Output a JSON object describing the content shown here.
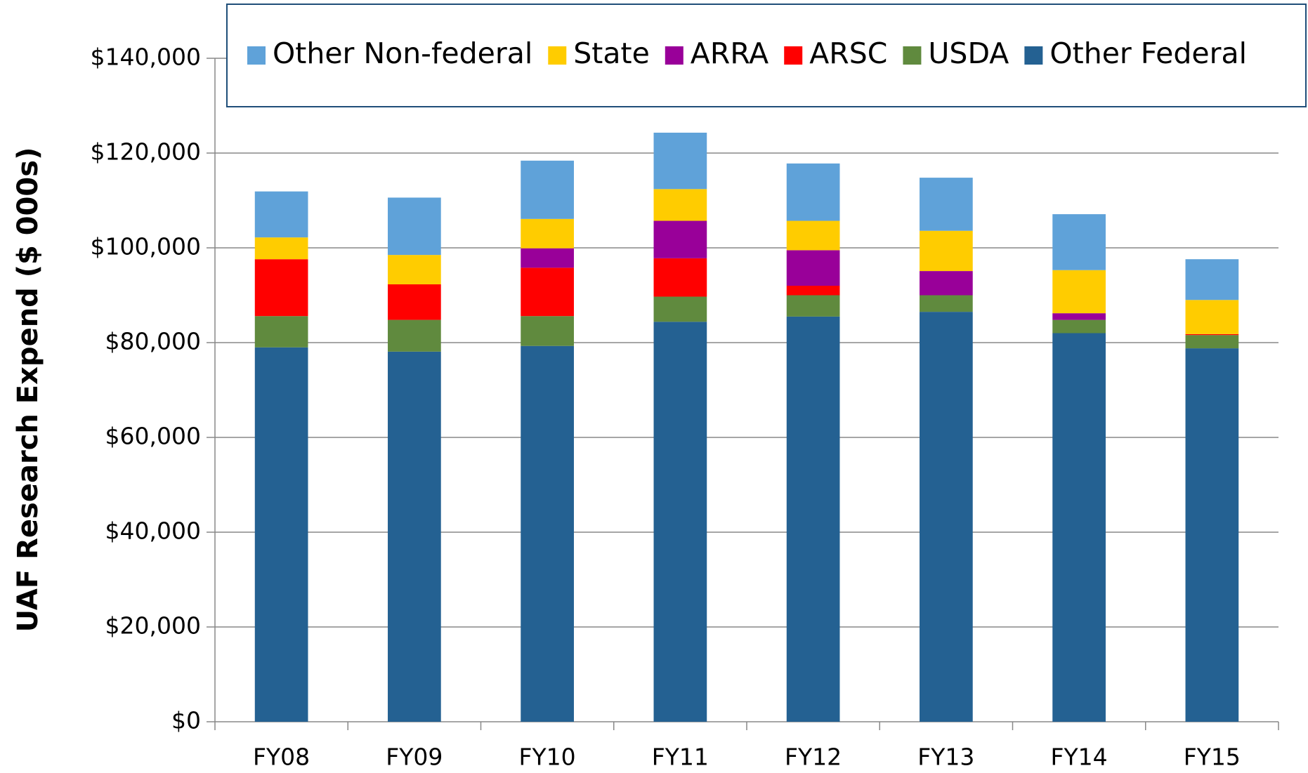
{
  "chart_data": {
    "type": "stacked_bar",
    "ylabel": "UAF Research Expend ($ 000s)",
    "categories": [
      "FY08",
      "FY09",
      "FY10",
      "FY11",
      "FY12",
      "FY13",
      "FY14",
      "FY15"
    ],
    "series": [
      {
        "name": "Other Non-federal",
        "color": "#5fa2d9",
        "values": [
          9700,
          12100,
          12300,
          11900,
          12100,
          11200,
          11800,
          8600
        ]
      },
      {
        "name": "State",
        "color": "#ffcc00",
        "values": [
          4600,
          6200,
          6200,
          6700,
          6200,
          8500,
          9100,
          7200
        ]
      },
      {
        "name": "ARRA",
        "color": "#990099",
        "values": [
          0,
          0,
          4100,
          7900,
          7500,
          5100,
          1400,
          0
        ]
      },
      {
        "name": "ARSC",
        "color": "#ff0000",
        "values": [
          12000,
          7500,
          10200,
          8100,
          2000,
          0,
          0,
          200
        ]
      },
      {
        "name": "USDA",
        "color": "#608a3e",
        "values": [
          6600,
          6700,
          6300,
          5300,
          4500,
          3500,
          2800,
          2800
        ]
      },
      {
        "name": "Other Federal",
        "color": "#246192",
        "values": [
          79000,
          78100,
          79300,
          84400,
          85500,
          86500,
          82000,
          78800
        ]
      }
    ],
    "ylim": [
      0,
      140000
    ],
    "yticks": [
      {
        "value": 0,
        "label": "$0"
      },
      {
        "value": 20000,
        "label": "$20,000"
      },
      {
        "value": 40000,
        "label": "$40,000"
      },
      {
        "value": 60000,
        "label": "$60,000"
      },
      {
        "value": 80000,
        "label": "$80,000"
      },
      {
        "value": 100000,
        "label": "$100,000"
      },
      {
        "value": 120000,
        "label": "$120,000"
      },
      {
        "value": 140000,
        "label": "$140,000"
      }
    ],
    "grid": true
  }
}
